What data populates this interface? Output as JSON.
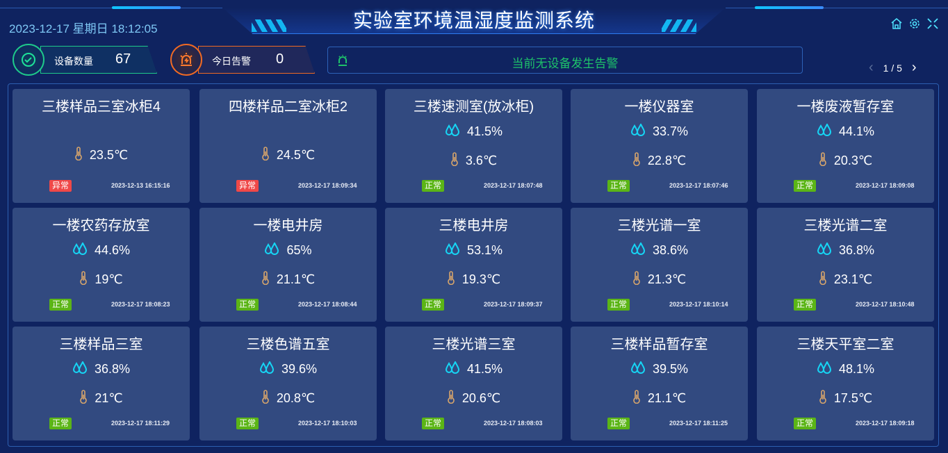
{
  "header": {
    "title": "实验室环境温湿度监测系统",
    "datetime": "2023-12-17 星期日 18:12:05"
  },
  "stats": [
    {
      "label": "设备数量",
      "value": "67",
      "color": "#1ec98a"
    },
    {
      "label": "今日告警",
      "value": "0",
      "color": "#f06a23"
    }
  ],
  "alert": {
    "text": "当前无设备发生告警"
  },
  "pager": {
    "text": "1 / 5"
  },
  "colors": {
    "normal": "#5bb516",
    "abnormal": "#f04848",
    "humidity": "#16d6f5",
    "temperature": "#d7a56b"
  },
  "cards": [
    {
      "name": "三楼样品三室冰柜4",
      "humidity": null,
      "temp": "23.5℃",
      "status": "异常",
      "time": "2023-12-13 16:15:16"
    },
    {
      "name": "四楼样品二室冰柜2",
      "humidity": null,
      "temp": "24.5℃",
      "status": "异常",
      "time": "2023-12-17 18:09:34"
    },
    {
      "name": "三楼速测室(放冰柜)",
      "humidity": "41.5%",
      "temp": "3.6℃",
      "status": "正常",
      "time": "2023-12-17 18:07:48"
    },
    {
      "name": "一楼仪器室",
      "humidity": "33.7%",
      "temp": "22.8℃",
      "status": "正常",
      "time": "2023-12-17 18:07:46"
    },
    {
      "name": "一楼废液暂存室",
      "humidity": "44.1%",
      "temp": "20.3℃",
      "status": "正常",
      "time": "2023-12-17 18:09:08"
    },
    {
      "name": "一楼农药存放室",
      "humidity": "44.6%",
      "temp": "19℃",
      "status": "正常",
      "time": "2023-12-17 18:08:23"
    },
    {
      "name": "一楼电井房",
      "humidity": "65%",
      "temp": "21.1℃",
      "status": "正常",
      "time": "2023-12-17 18:08:44"
    },
    {
      "name": "三楼电井房",
      "humidity": "53.1%",
      "temp": "19.3℃",
      "status": "正常",
      "time": "2023-12-17 18:09:37"
    },
    {
      "name": "三楼光谱一室",
      "humidity": "38.6%",
      "temp": "21.3℃",
      "status": "正常",
      "time": "2023-12-17 18:10:14"
    },
    {
      "name": "三楼光谱二室",
      "humidity": "36.8%",
      "temp": "23.1℃",
      "status": "正常",
      "time": "2023-12-17 18:10:48"
    },
    {
      "name": "三楼样品三室",
      "humidity": "36.8%",
      "temp": "21℃",
      "status": "正常",
      "time": "2023-12-17 18:11:29"
    },
    {
      "name": "三楼色谱五室",
      "humidity": "39.6%",
      "temp": "20.8℃",
      "status": "正常",
      "time": "2023-12-17 18:10:03"
    },
    {
      "name": "三楼光谱三室",
      "humidity": "41.5%",
      "temp": "20.6℃",
      "status": "正常",
      "time": "2023-12-17 18:08:03"
    },
    {
      "name": "三楼样品暂存室",
      "humidity": "39.5%",
      "temp": "21.1℃",
      "status": "正常",
      "time": "2023-12-17 18:11:25"
    },
    {
      "name": "三楼天平室二室",
      "humidity": "48.1%",
      "temp": "17.5℃",
      "status": "正常",
      "time": "2023-12-17 18:09:18"
    }
  ]
}
